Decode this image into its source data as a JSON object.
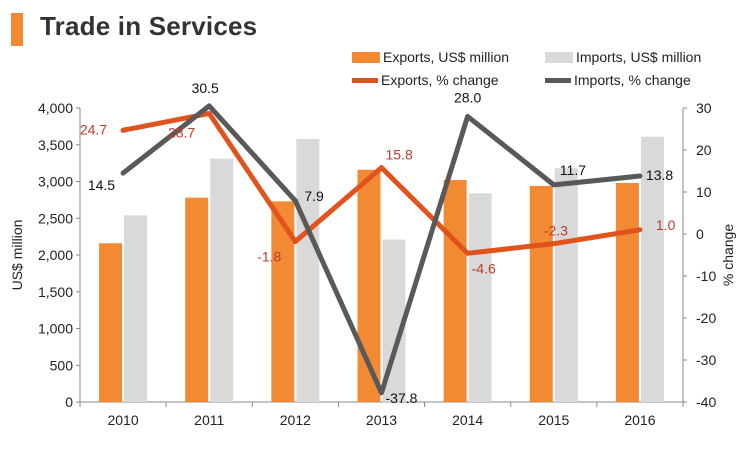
{
  "header": {
    "title": "Trade in Services",
    "accent_color": "#f28a33"
  },
  "legend": [
    {
      "label": "Exports, US$ million",
      "kind": "bar",
      "color": "#f28a33"
    },
    {
      "label": "Imports, US$ million",
      "kind": "bar",
      "color": "#d9d9d9"
    },
    {
      "label": "Exports, % change",
      "kind": "line",
      "color": "#e0531c"
    },
    {
      "label": "Imports, % change",
      "kind": "line",
      "color": "#595959"
    }
  ],
  "chart_data": {
    "type": "bar+line",
    "title": "Trade in Services",
    "categories": [
      "2010",
      "2011",
      "2012",
      "2013",
      "2014",
      "2015",
      "2016"
    ],
    "xlabel": "",
    "ylabel": "US$ million",
    "y2label": "% change",
    "ylim": [
      0,
      4000
    ],
    "y2lim": [
      -40,
      30
    ],
    "yticks": [
      "0",
      "500",
      "1,000",
      "1,500",
      "2,000",
      "2,500",
      "3,000",
      "3,500",
      "4,000"
    ],
    "y2ticks": [
      "-40",
      "-30",
      "-20",
      "-10",
      "0",
      "10",
      "20",
      "30"
    ],
    "bar_series": [
      {
        "name": "Exports, US$ million",
        "color": "#f28a33",
        "values": [
          2160,
          2780,
          2730,
          3160,
          3020,
          2940,
          2980
        ]
      },
      {
        "name": "Imports, US$ million",
        "color": "#d9d9d9",
        "values": [
          2540,
          3310,
          3580,
          2210,
          2840,
          3180,
          3610
        ]
      }
    ],
    "line_series": [
      {
        "name": "Exports, % change",
        "color": "#e0531c",
        "label_color": "#c0392b",
        "values": [
          24.7,
          28.7,
          -1.8,
          15.8,
          -4.6,
          -2.3,
          1.0
        ],
        "labels": [
          "24.7",
          "28.7",
          "-1.8",
          "15.8",
          "-4.6",
          "-2.3",
          "1.0"
        ]
      },
      {
        "name": "Imports, % change",
        "color": "#595959",
        "label_color": "#111111",
        "values": [
          14.5,
          30.5,
          7.9,
          -37.8,
          28.0,
          11.7,
          13.8
        ],
        "labels": [
          "14.5",
          "30.5",
          "7.9",
          "-37.8",
          "28.0",
          "11.7",
          "13.8"
        ]
      }
    ]
  }
}
